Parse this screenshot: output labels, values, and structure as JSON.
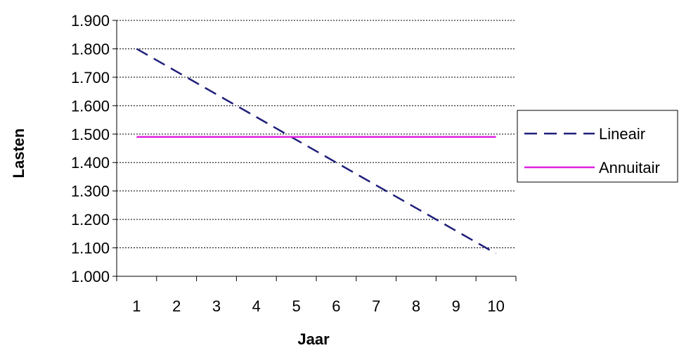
{
  "chart_data": {
    "type": "line",
    "xlabel": "Jaar",
    "ylabel": "Lasten",
    "categories": [
      "1",
      "2",
      "3",
      "4",
      "5",
      "6",
      "7",
      "8",
      "9",
      "10"
    ],
    "x": [
      1,
      2,
      3,
      4,
      5,
      6,
      7,
      8,
      9,
      10
    ],
    "ylim": [
      1000,
      1900
    ],
    "yticks": [
      1000,
      1100,
      1200,
      1300,
      1400,
      1500,
      1600,
      1700,
      1800,
      1900
    ],
    "ytick_labels": [
      "1.000",
      "1.100",
      "1.200",
      "1.300",
      "1.400",
      "1.500",
      "1.600",
      "1.700",
      "1.800",
      "1.900"
    ],
    "grid": "horizontal dotted",
    "legend_position": "right",
    "series": [
      {
        "name": "Lineair",
        "color": "#1F1F7A",
        "line_style": "dashed",
        "values": [
          1800,
          1720,
          1640,
          1560,
          1480,
          1400,
          1320,
          1240,
          1160,
          1080
        ]
      },
      {
        "name": "Annuitair",
        "color": "#E020E0",
        "line_style": "solid",
        "values": [
          1490,
          1490,
          1490,
          1490,
          1490,
          1490,
          1490,
          1490,
          1490,
          1490
        ]
      }
    ]
  }
}
